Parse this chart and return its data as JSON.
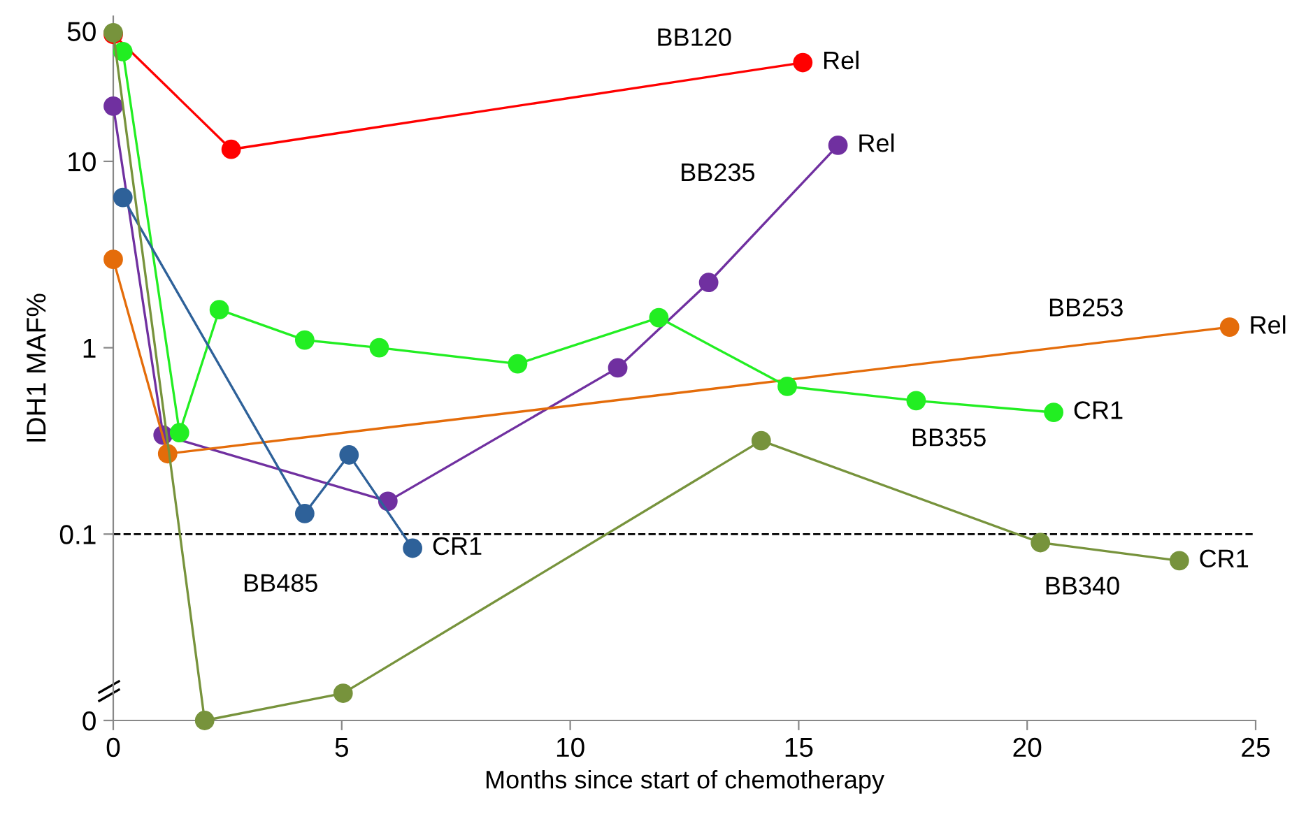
{
  "chart_data": {
    "type": "line",
    "xlabel": "Months since start of chemotherapy",
    "ylabel": "IDH1 MAF%",
    "log": "y",
    "xlim": [
      0,
      25
    ],
    "xticks": [
      0,
      5,
      10,
      15,
      20,
      25
    ],
    "ylim": [
      0.01,
      60
    ],
    "yticks": [
      {
        "value": 0.01,
        "label": "0"
      },
      0.1,
      1,
      10,
      50
    ],
    "grid": false,
    "marker": "circle",
    "line_style": "solid",
    "series": [
      {
        "name": "BB120",
        "color": "#ff0000",
        "x": [
          0,
          2.58,
          15.09
        ],
        "values": [
          48,
          11.6,
          33.9
        ]
      },
      {
        "name": "BB235",
        "color": "#7030a0",
        "x": [
          0,
          1.09,
          6.01,
          11.04,
          13.03,
          15.86
        ],
        "values": [
          19.8,
          0.34,
          0.15,
          0.78,
          2.24,
          12.2
        ]
      },
      {
        "name": "BB253",
        "color": "#e46c0a",
        "x": [
          0,
          1.19,
          24.43
        ],
        "values": [
          2.98,
          0.27,
          1.29
        ]
      },
      {
        "name": "BB355",
        "color": "#22ee22",
        "x": [
          0.21,
          1.45,
          2.32,
          4.19,
          5.82,
          8.85,
          11.94,
          14.75,
          17.57,
          20.58
        ],
        "values": [
          38.8,
          0.35,
          1.6,
          1.1,
          1.0,
          0.82,
          1.45,
          0.62,
          0.52,
          0.45
        ]
      },
      {
        "name": "BB485",
        "color": "#2e6199",
        "x": [
          0.21,
          4.19,
          5.16,
          6.55
        ],
        "values": [
          6.4,
          0.129,
          0.266,
          0.084
        ]
      },
      {
        "name": "BB340",
        "color": "#77933c",
        "x": [
          0,
          2.0,
          5.03,
          14.18,
          20.29,
          23.33
        ],
        "values": [
          49,
          0.01,
          0.014,
          0.317,
          0.09,
          0.072
        ]
      }
    ],
    "ref_lines": [
      {
        "axis": "y",
        "value": 0.1,
        "color": "#000000",
        "line_style": "dashed"
      }
    ],
    "annotations": [
      {
        "text": "Rel",
        "x": 15.09,
        "y": 33.9
      },
      {
        "text": "Rel",
        "x": 15.86,
        "y": 12.2
      },
      {
        "text": "Rel",
        "x": 24.43,
        "y": 1.29
      },
      {
        "text": "CR1",
        "x": 20.58,
        "y": 0.45
      },
      {
        "text": "CR1",
        "x": 23.33,
        "y": 0.072
      },
      {
        "text": "CR1",
        "x": 6.55,
        "y": 0.084
      }
    ]
  }
}
